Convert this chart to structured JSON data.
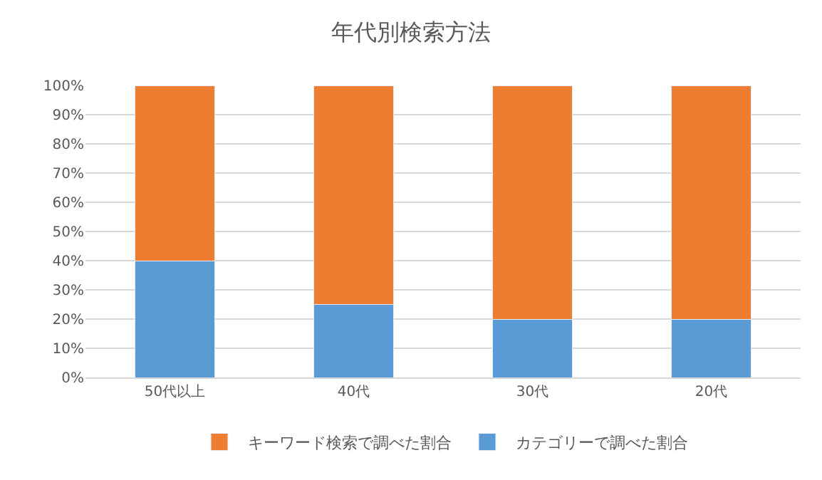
{
  "chart_data": {
    "type": "bar",
    "title": "年代別検索方法",
    "categories": [
      "50代以上",
      "40代",
      "30代",
      "20代"
    ],
    "stacked": true,
    "series": [
      {
        "name": "カテゴリーで調べた割合",
        "color": "#5b9bd5",
        "values": [
          40,
          25,
          20,
          20
        ]
      },
      {
        "name": "キーワード検索で調べた割合",
        "color": "#ed7d31",
        "values": [
          60,
          75,
          80,
          80
        ]
      }
    ],
    "ylim": [
      0,
      100
    ],
    "yticks": [
      {
        "value": 0,
        "label": "0%"
      },
      {
        "value": 10,
        "label": "10%"
      },
      {
        "value": 20,
        "label": "20%"
      },
      {
        "value": 30,
        "label": "30%"
      },
      {
        "value": 40,
        "label": "40%"
      },
      {
        "value": 50,
        "label": "50%"
      },
      {
        "value": 60,
        "label": "60%"
      },
      {
        "value": 70,
        "label": "70%"
      },
      {
        "value": 80,
        "label": "80%"
      },
      {
        "value": 90,
        "label": "90%"
      },
      {
        "value": 100,
        "label": "100%"
      }
    ],
    "grid": "y",
    "legend": "bottom"
  }
}
